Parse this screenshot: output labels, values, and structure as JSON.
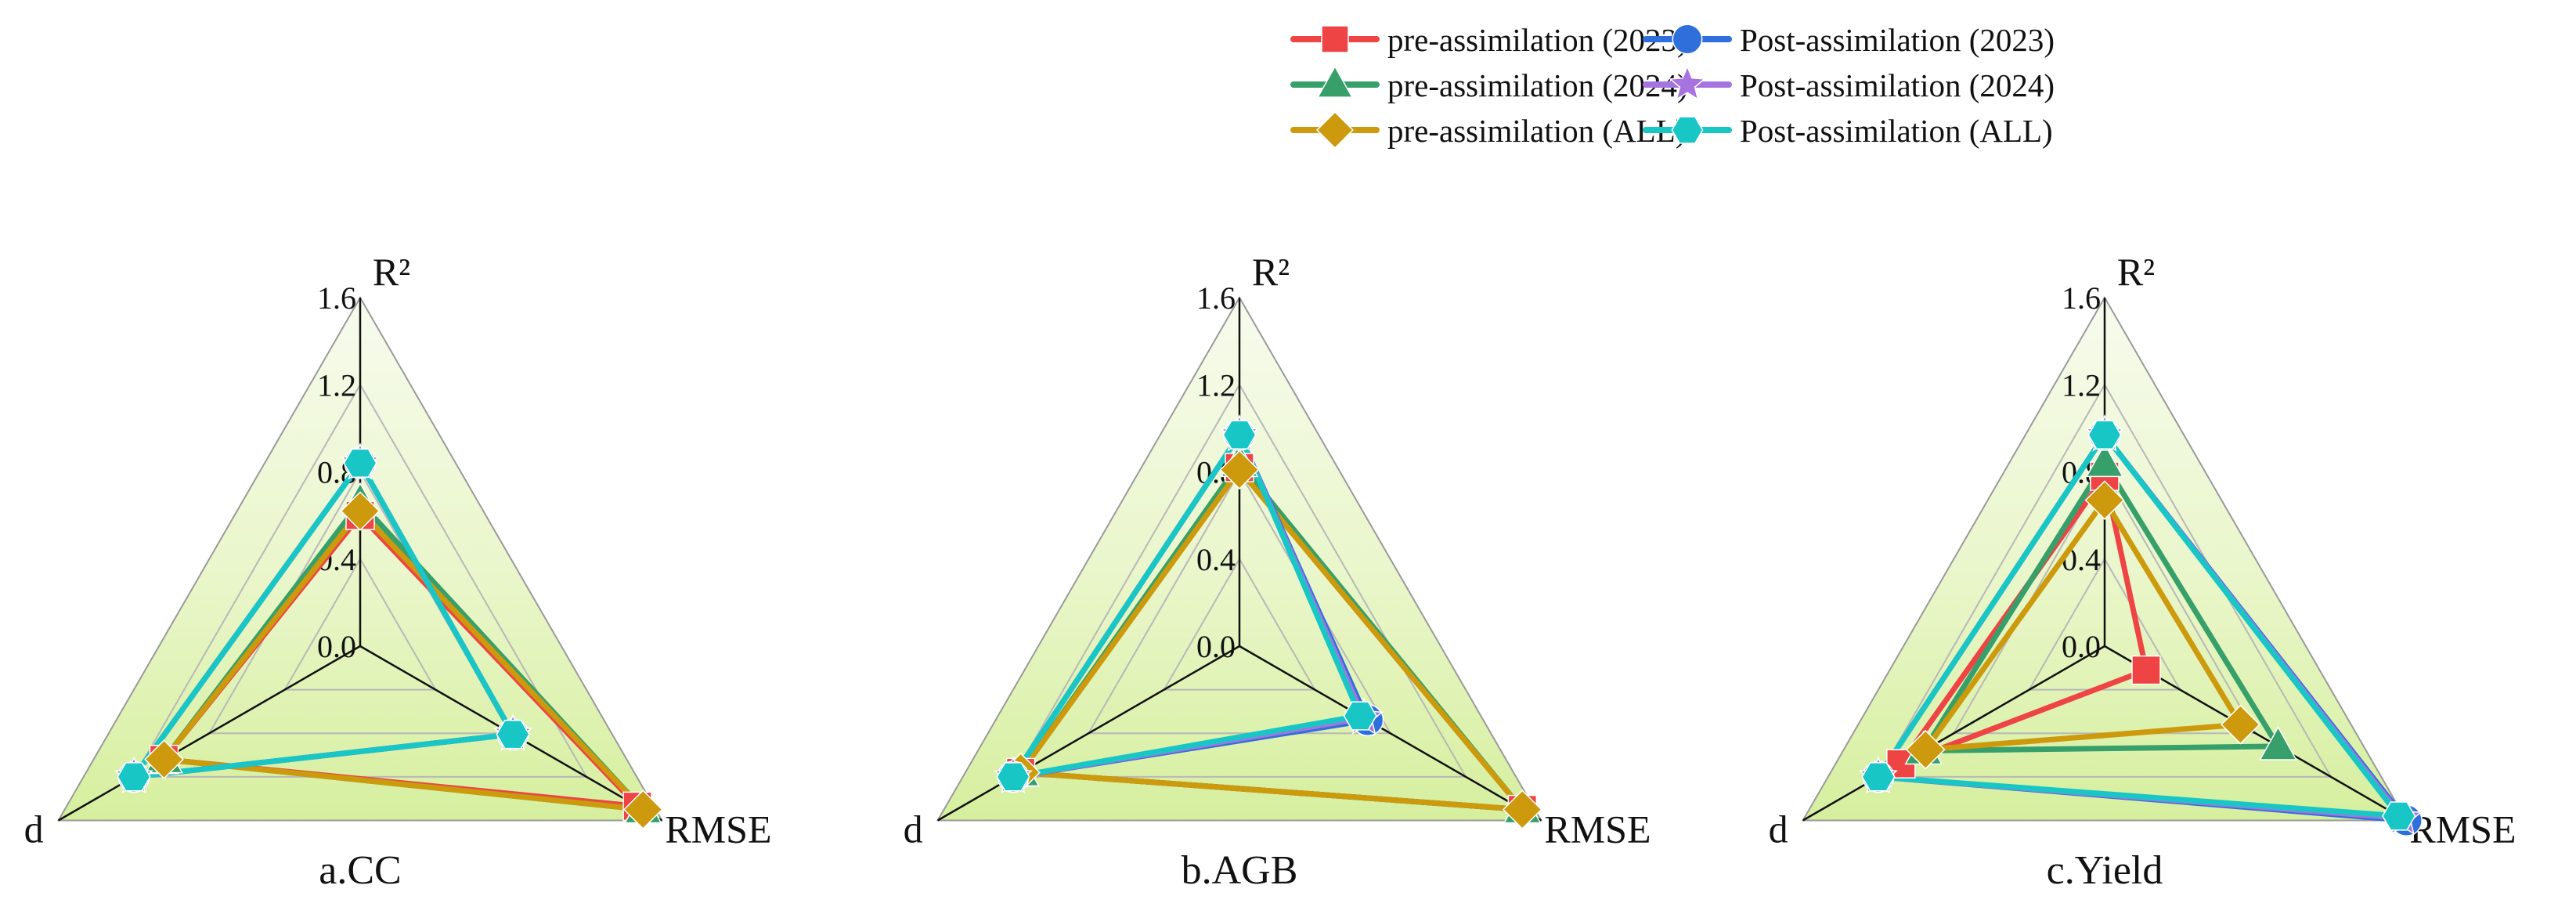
{
  "legend": {
    "entries": [
      {
        "label": "pre-assimilation (2023)",
        "color": "#ee4444",
        "marker": "square"
      },
      {
        "label": "Post-assimilation (2023)",
        "color": "#2f6fdc",
        "marker": "circle"
      },
      {
        "label": "pre-assimilation (2024)",
        "color": "#37a06a",
        "marker": "triangle"
      },
      {
        "label": "Post-assimilation (2024)",
        "color": "#a673e0",
        "marker": "star"
      },
      {
        "label": "pre-assimilation (ALL)",
        "color": "#cc9a0c",
        "marker": "diamond"
      },
      {
        "label": "Post-assimilation (ALL)",
        "color": "#19c6c6",
        "marker": "hexagon"
      }
    ]
  },
  "chart_data": [
    {
      "type": "radar",
      "title": "a.CC",
      "axes": [
        "R²",
        "RMSE",
        "d"
      ],
      "r_ticks": [
        "1.6",
        "1.2",
        "0.8",
        "0.4",
        "0.0"
      ],
      "rlim": [
        0,
        1.6
      ],
      "series": [
        {
          "name": "pre-assimilation (2023)",
          "values": [
            0.6,
            1.47,
            1.04
          ]
        },
        {
          "name": "pre-assimilation (2024)",
          "values": [
            0.66,
            1.5,
            1.04
          ]
        },
        {
          "name": "pre-assimilation (ALL)",
          "values": [
            0.62,
            1.5,
            1.04
          ]
        },
        {
          "name": "Post-assimilation (2023)",
          "values": [
            0.84,
            0.81,
            1.2
          ]
        },
        {
          "name": "Post-assimilation (2024)",
          "values": [
            0.84,
            0.81,
            1.2
          ]
        },
        {
          "name": "Post-assimilation (ALL)",
          "values": [
            0.84,
            0.81,
            1.2
          ]
        }
      ]
    },
    {
      "type": "radar",
      "title": "b.AGB",
      "axes": [
        "R²",
        "RMSE",
        "d"
      ],
      "r_ticks": [
        "1.6",
        "1.2",
        "0.8",
        "0.4",
        "0.0"
      ],
      "rlim": [
        0,
        1.6
      ],
      "series": [
        {
          "name": "pre-assimilation (2023)",
          "values": [
            0.82,
            1.5,
            1.16
          ]
        },
        {
          "name": "pre-assimilation (2024)",
          "values": [
            0.84,
            1.5,
            1.16
          ]
        },
        {
          "name": "pre-assimilation (ALL)",
          "values": [
            0.81,
            1.5,
            1.16
          ]
        },
        {
          "name": "Post-assimilation (2023)",
          "values": [
            0.97,
            0.68,
            1.2
          ]
        },
        {
          "name": "Post-assimilation (2024)",
          "values": [
            0.97,
            0.66,
            1.2
          ]
        },
        {
          "name": "Post-assimilation (ALL)",
          "values": [
            0.97,
            0.64,
            1.2
          ]
        }
      ]
    },
    {
      "type": "radar",
      "title": "c.Yield",
      "axes": [
        "R²",
        "RMSE",
        "d"
      ],
      "r_ticks": [
        "1.6",
        "1.2",
        "0.8",
        "0.4",
        "0.0"
      ],
      "rlim": [
        0,
        1.6
      ],
      "series": [
        {
          "name": "pre-assimilation (2023)",
          "values": [
            0.78,
            0.22,
            1.08
          ]
        },
        {
          "name": "pre-assimilation (2024)",
          "values": [
            0.84,
            0.92,
            0.96
          ]
        },
        {
          "name": "pre-assimilation (ALL)",
          "values": [
            0.67,
            0.72,
            0.95
          ]
        },
        {
          "name": "Post-assimilation (2023)",
          "values": [
            0.97,
            1.6,
            1.2
          ]
        },
        {
          "name": "Post-assimilation (2024)",
          "values": [
            0.97,
            1.58,
            1.2
          ]
        },
        {
          "name": "Post-assimilation (ALL)",
          "values": [
            0.97,
            1.56,
            1.2
          ]
        }
      ]
    }
  ]
}
